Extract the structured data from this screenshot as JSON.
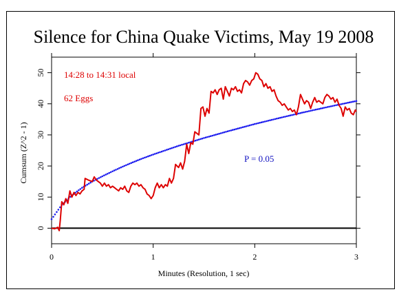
{
  "chart_data": {
    "type": "line",
    "title": "Silence for China Quake Victims, May 19 2008",
    "xlabel": "Minutes (Resolution, 1 sec)",
    "ylabel": "Cumsum (Z^2 - 1)",
    "xlim": [
      0,
      3
    ],
    "ylim": [
      -5,
      55
    ],
    "x_ticks": [
      0,
      1,
      2,
      3
    ],
    "y_ticks": [
      0,
      10,
      20,
      30,
      40,
      50
    ],
    "grid": false,
    "annotations": {
      "time_window": "14:28 to 14:31 local",
      "eggs": "62 Eggs",
      "probability": "P = 0.05"
    },
    "colors": {
      "cumsum": "#dd0000",
      "probability_envelope": "#1a1aee",
      "baseline": "#000000"
    },
    "series": [
      {
        "values_xy": [
          [
            0.0,
            0.0
          ],
          [
            0.03,
            -0.2
          ],
          [
            0.06,
            0.3
          ],
          [
            0.075,
            -0.8
          ],
          [
            0.085,
            2.5
          ],
          [
            0.1,
            8.5
          ],
          [
            0.12,
            7.5
          ],
          [
            0.14,
            9.5
          ],
          [
            0.16,
            8.0
          ],
          [
            0.18,
            12.0
          ],
          [
            0.2,
            10.0
          ],
          [
            0.22,
            11.5
          ],
          [
            0.24,
            10.5
          ],
          [
            0.26,
            11.5
          ],
          [
            0.28,
            11.0
          ],
          [
            0.3,
            12.0
          ],
          [
            0.32,
            12.5
          ],
          [
            0.33,
            16.0
          ],
          [
            0.36,
            15.5
          ],
          [
            0.4,
            15.0
          ],
          [
            0.42,
            16.5
          ],
          [
            0.44,
            15.5
          ],
          [
            0.46,
            15.0
          ],
          [
            0.48,
            14.5
          ],
          [
            0.5,
            13.5
          ],
          [
            0.52,
            14.5
          ],
          [
            0.54,
            13.5
          ],
          [
            0.56,
            14.0
          ],
          [
            0.58,
            13.0
          ],
          [
            0.6,
            13.5
          ],
          [
            0.62,
            13.0
          ],
          [
            0.64,
            12.5
          ],
          [
            0.66,
            12.0
          ],
          [
            0.68,
            13.0
          ],
          [
            0.7,
            12.5
          ],
          [
            0.72,
            13.5
          ],
          [
            0.74,
            12.0
          ],
          [
            0.76,
            11.5
          ],
          [
            0.78,
            13.5
          ],
          [
            0.8,
            14.5
          ],
          [
            0.82,
            14.0
          ],
          [
            0.84,
            14.5
          ],
          [
            0.86,
            13.5
          ],
          [
            0.88,
            14.0
          ],
          [
            0.9,
            13.0
          ],
          [
            0.92,
            12.5
          ],
          [
            0.94,
            11.0
          ],
          [
            0.96,
            10.5
          ],
          [
            0.98,
            9.5
          ],
          [
            1.0,
            10.5
          ],
          [
            1.02,
            13.0
          ],
          [
            1.04,
            14.5
          ],
          [
            1.06,
            13.0
          ],
          [
            1.08,
            14.0
          ],
          [
            1.1,
            13.0
          ],
          [
            1.12,
            14.0
          ],
          [
            1.14,
            13.5
          ],
          [
            1.16,
            16.0
          ],
          [
            1.18,
            14.5
          ],
          [
            1.2,
            16.0
          ],
          [
            1.22,
            20.5
          ],
          [
            1.25,
            19.5
          ],
          [
            1.27,
            21.0
          ],
          [
            1.29,
            19.0
          ],
          [
            1.31,
            21.5
          ],
          [
            1.33,
            27.0
          ],
          [
            1.35,
            24.0
          ],
          [
            1.37,
            27.5
          ],
          [
            1.39,
            27.0
          ],
          [
            1.41,
            31.0
          ],
          [
            1.43,
            30.5
          ],
          [
            1.45,
            30.0
          ],
          [
            1.47,
            38.5
          ],
          [
            1.49,
            39.0
          ],
          [
            1.51,
            36.0
          ],
          [
            1.53,
            38.5
          ],
          [
            1.55,
            37.0
          ],
          [
            1.57,
            44.0
          ],
          [
            1.59,
            43.5
          ],
          [
            1.61,
            44.5
          ],
          [
            1.63,
            43.0
          ],
          [
            1.65,
            44.5
          ],
          [
            1.67,
            45.0
          ],
          [
            1.69,
            41.5
          ],
          [
            1.71,
            45.5
          ],
          [
            1.73,
            44.0
          ],
          [
            1.75,
            42.5
          ],
          [
            1.77,
            45.0
          ],
          [
            1.79,
            44.5
          ],
          [
            1.81,
            45.5
          ],
          [
            1.83,
            44.0
          ],
          [
            1.85,
            44.5
          ],
          [
            1.87,
            43.5
          ],
          [
            1.89,
            46.5
          ],
          [
            1.91,
            47.5
          ],
          [
            1.93,
            47.0
          ],
          [
            1.95,
            46.0
          ],
          [
            1.97,
            47.5
          ],
          [
            1.99,
            48.0
          ],
          [
            2.01,
            50.0
          ],
          [
            2.03,
            49.5
          ],
          [
            2.05,
            48.0
          ],
          [
            2.07,
            47.5
          ],
          [
            2.09,
            45.5
          ],
          [
            2.11,
            46.5
          ],
          [
            2.13,
            45.0
          ],
          [
            2.15,
            45.5
          ],
          [
            2.17,
            44.0
          ],
          [
            2.19,
            44.5
          ],
          [
            2.21,
            42.5
          ],
          [
            2.23,
            41.0
          ],
          [
            2.25,
            40.5
          ],
          [
            2.27,
            39.5
          ],
          [
            2.29,
            40.0
          ],
          [
            2.31,
            39.0
          ],
          [
            2.33,
            38.0
          ],
          [
            2.35,
            38.5
          ],
          [
            2.37,
            37.5
          ],
          [
            2.39,
            38.0
          ],
          [
            2.41,
            36.5
          ],
          [
            2.43,
            39.0
          ],
          [
            2.45,
            43.0
          ],
          [
            2.47,
            41.5
          ],
          [
            2.49,
            40.0
          ],
          [
            2.51,
            41.0
          ],
          [
            2.53,
            40.5
          ],
          [
            2.55,
            38.5
          ],
          [
            2.57,
            40.5
          ],
          [
            2.59,
            42.0
          ],
          [
            2.61,
            40.5
          ],
          [
            2.63,
            41.0
          ],
          [
            2.65,
            40.5
          ],
          [
            2.67,
            40.0
          ],
          [
            2.69,
            42.0
          ],
          [
            2.71,
            43.0
          ],
          [
            2.73,
            42.5
          ],
          [
            2.75,
            41.5
          ],
          [
            2.77,
            42.0
          ],
          [
            2.79,
            40.5
          ],
          [
            2.81,
            41.5
          ],
          [
            2.83,
            39.5
          ],
          [
            2.85,
            38.5
          ],
          [
            2.87,
            36.0
          ],
          [
            2.89,
            39.0
          ],
          [
            2.91,
            38.0
          ],
          [
            2.93,
            38.5
          ],
          [
            2.95,
            37.0
          ],
          [
            2.97,
            36.5
          ],
          [
            2.99,
            38.0
          ],
          [
            3.0,
            37.5
          ]
        ]
      },
      {
        "formula": "P = 0.05 envelope",
        "values_xy": [
          [
            0.0,
            2.9
          ],
          [
            0.1,
            7.5
          ],
          [
            0.2,
            10.6
          ],
          [
            0.3,
            13.0
          ],
          [
            0.4,
            15.0
          ],
          [
            0.5,
            16.7
          ],
          [
            0.6,
            18.3
          ],
          [
            0.7,
            19.8
          ],
          [
            0.8,
            21.2
          ],
          [
            0.9,
            22.5
          ],
          [
            1.0,
            23.7
          ],
          [
            1.25,
            26.5
          ],
          [
            1.5,
            29.0
          ],
          [
            1.75,
            31.3
          ],
          [
            2.0,
            33.5
          ],
          [
            2.25,
            35.5
          ],
          [
            2.5,
            37.4
          ],
          [
            2.75,
            39.2
          ],
          [
            3.0,
            40.9
          ]
        ]
      }
    ]
  }
}
